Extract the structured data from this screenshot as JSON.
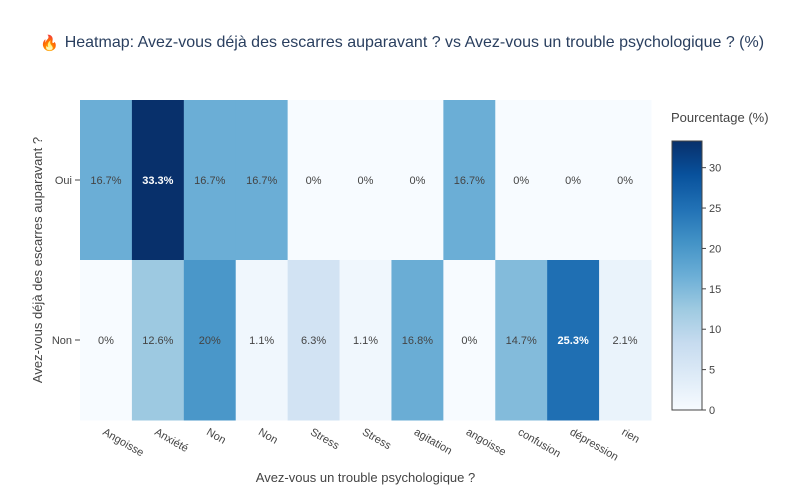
{
  "title": {
    "icon": "flame-icon",
    "emoji": "🔥",
    "text": "Heatmap: Avez-vous déjà des escarres auparavant ? vs Avez-vous un trouble psychologique ? (%)"
  },
  "chart_data": {
    "type": "heatmap",
    "title": "Heatmap: Avez-vous déjà des escarres auparavant ? vs Avez-vous un trouble psychologique ? (%)",
    "xlabel": "Avez-vous un trouble psychologique ?",
    "ylabel": "Avez-vous déjà des escarres auparavant ?",
    "x": [
      "Angoisse",
      "Anxiété",
      "Non",
      "Non ",
      "Stress",
      "Stress ",
      "agitation",
      "angoisse",
      "confusion",
      "dépression",
      "rien"
    ],
    "y": [
      "Oui",
      "Non"
    ],
    "z": [
      [
        16.7,
        33.3,
        16.7,
        16.7,
        0,
        0,
        0,
        16.7,
        0,
        0,
        0
      ],
      [
        0,
        12.6,
        20,
        1.1,
        6.3,
        1.1,
        16.8,
        0,
        14.7,
        25.3,
        2.1
      ]
    ],
    "text": [
      [
        "16.7%",
        "33.3%",
        "16.7%",
        "16.7%",
        "0%",
        "0%",
        "0%",
        "16.7%",
        "0%",
        "0%",
        "0%"
      ],
      [
        "0%",
        "12.6%",
        "20%",
        "1.1%",
        "6.3%",
        "1.1%",
        "16.8%",
        "0%",
        "14.7%",
        "25.3%",
        "2.1%"
      ]
    ],
    "colorscale": "Blues",
    "zmin": 0,
    "zmax": 33.3,
    "colorbar": {
      "title": "Pourcentage (%)",
      "ticks": [
        0,
        5,
        10,
        15,
        20,
        25,
        30
      ]
    }
  }
}
